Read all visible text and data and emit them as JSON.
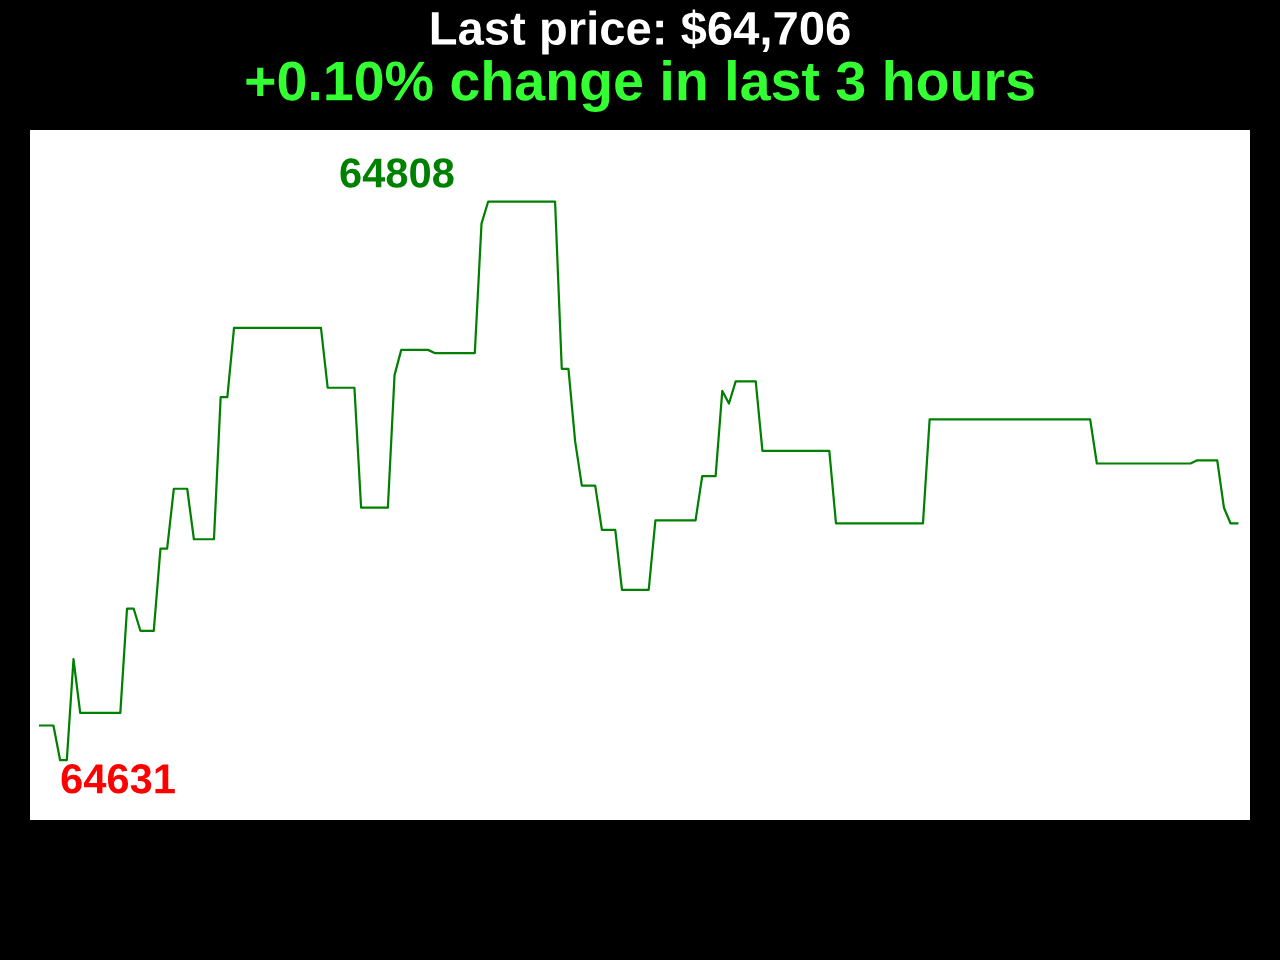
{
  "chart_data": {
    "type": "line",
    "title": "Last price: $64,706",
    "subtitle": "+0.10% change in last 3 hours",
    "categories": [
      null,
      null,
      null,
      null,
      null,
      null,
      null,
      null,
      null,
      null,
      null,
      null,
      null,
      null,
      null,
      null,
      null,
      null,
      null,
      null,
      null,
      null,
      null,
      null,
      null,
      null,
      null,
      null,
      null,
      null,
      null,
      null,
      null,
      null,
      null,
      null,
      null,
      null,
      null,
      null,
      null,
      null,
      null,
      null,
      null,
      null,
      null,
      null,
      null,
      null,
      null,
      null,
      null,
      null,
      null,
      null,
      null,
      null,
      null,
      null,
      null,
      null,
      null,
      null,
      null,
      null,
      null,
      null,
      null,
      null,
      null,
      null,
      null,
      null,
      null,
      null,
      null,
      null,
      null,
      null,
      null,
      null,
      null,
      null,
      null,
      null,
      null,
      null,
      null,
      null,
      null,
      null,
      null,
      null,
      null,
      null,
      null,
      null,
      null,
      null,
      null,
      null,
      null,
      null,
      null,
      null,
      null,
      null,
      null,
      null,
      null,
      null,
      null,
      null,
      null,
      null,
      null,
      null,
      null,
      null,
      null,
      null,
      null,
      null,
      null,
      null,
      null,
      null,
      null,
      null,
      null,
      null,
      null,
      null,
      null,
      null,
      null,
      null,
      null,
      null,
      null,
      null,
      null,
      null,
      null,
      null,
      null,
      null,
      null,
      null,
      null,
      null,
      null,
      null,
      null,
      null,
      null,
      null,
      null,
      null,
      null,
      null,
      null,
      null,
      null,
      null,
      null,
      null,
      null,
      null,
      null,
      null,
      null,
      null,
      null,
      null,
      null,
      null,
      null,
      null
    ],
    "series": [
      {
        "color": "#008000",
        "values": [
          64642,
          64642,
          64642,
          64631,
          64631,
          64663,
          64646,
          64646,
          64646,
          64646,
          64646,
          64646,
          64646,
          64679,
          64679,
          64672,
          64672,
          64672,
          64698,
          64698,
          64717,
          64717,
          64717,
          64701,
          64701,
          64701,
          64701,
          64746,
          64746,
          64768,
          64768,
          64768,
          64768,
          64768,
          64768,
          64768,
          64768,
          64768,
          64768,
          64768,
          64768,
          64768,
          64768,
          64749,
          64749,
          64749,
          64749,
          64749,
          64711,
          64711,
          64711,
          64711,
          64711,
          64753,
          64761,
          64761,
          64761,
          64761,
          64761,
          64760,
          64760,
          64760,
          64760,
          64760,
          64760,
          64760,
          64801,
          64808,
          64808,
          64808,
          64808,
          64808,
          64808,
          64808,
          64808,
          64808,
          64808,
          64808,
          64755,
          64755,
          64732,
          64718,
          64718,
          64718,
          64704,
          64704,
          64704,
          64685,
          64685,
          64685,
          64685,
          64685,
          64707,
          64707,
          64707,
          64707,
          64707,
          64707,
          64707,
          64721,
          64721,
          64721,
          64748,
          64744,
          64751,
          64751,
          64751,
          64751,
          64729,
          64729,
          64729,
          64729,
          64729,
          64729,
          64729,
          64729,
          64729,
          64729,
          64729,
          64706,
          64706,
          64706,
          64706,
          64706,
          64706,
          64706,
          64706,
          64706,
          64706,
          64706,
          64706,
          64706,
          64706,
          64739,
          64739,
          64739,
          64739,
          64739,
          64739,
          64739,
          64739,
          64739,
          64739,
          64739,
          64739,
          64739,
          64739,
          64739,
          64739,
          64739,
          64739,
          64739,
          64739,
          64739,
          64739,
          64739,
          64739,
          64739,
          64725,
          64725,
          64725,
          64725,
          64725,
          64725,
          64725,
          64725,
          64725,
          64725,
          64725,
          64725,
          64725,
          64725,
          64725,
          64726,
          64726,
          64726,
          64726,
          64711,
          64706,
          64706
        ],
        "value_labels": [
          null,
          null,
          null,
          "64631",
          null,
          null,
          null,
          null,
          null,
          null,
          null,
          null,
          null,
          null,
          null,
          null,
          null,
          null,
          null,
          null,
          null,
          null,
          null,
          null,
          null,
          null,
          null,
          null,
          null,
          null,
          null,
          null,
          null,
          null,
          null,
          null,
          null,
          null,
          null,
          null,
          null,
          null,
          null,
          null,
          null,
          null,
          null,
          null,
          null,
          null,
          null,
          null,
          null,
          null,
          null,
          null,
          null,
          null,
          null,
          null,
          null,
          null,
          null,
          null,
          null,
          null,
          null,
          "64808",
          null,
          null,
          null,
          null,
          null,
          null,
          null,
          null,
          null,
          null,
          null,
          null,
          null,
          null,
          null,
          null,
          null,
          null,
          null,
          null,
          null,
          null,
          null,
          null,
          null,
          null,
          null,
          null,
          null,
          null,
          null,
          null,
          null,
          null,
          null,
          null,
          null,
          null,
          null,
          null,
          null,
          null,
          null,
          null,
          null,
          null,
          null,
          null,
          null,
          null,
          null,
          null,
          null,
          null,
          null,
          null,
          null,
          null,
          null,
          null,
          null,
          null,
          null,
          null,
          null,
          null,
          null,
          null,
          null,
          null,
          null,
          null,
          null,
          null,
          null,
          null,
          null,
          null,
          null,
          null,
          null,
          null,
          null,
          null,
          null,
          null,
          null,
          null,
          null,
          null,
          null,
          null,
          null,
          null,
          null,
          null,
          null,
          null,
          null,
          null,
          null,
          null,
          null,
          null,
          null,
          null,
          null,
          null,
          null,
          null,
          null,
          null
        ]
      }
    ]
  }
}
